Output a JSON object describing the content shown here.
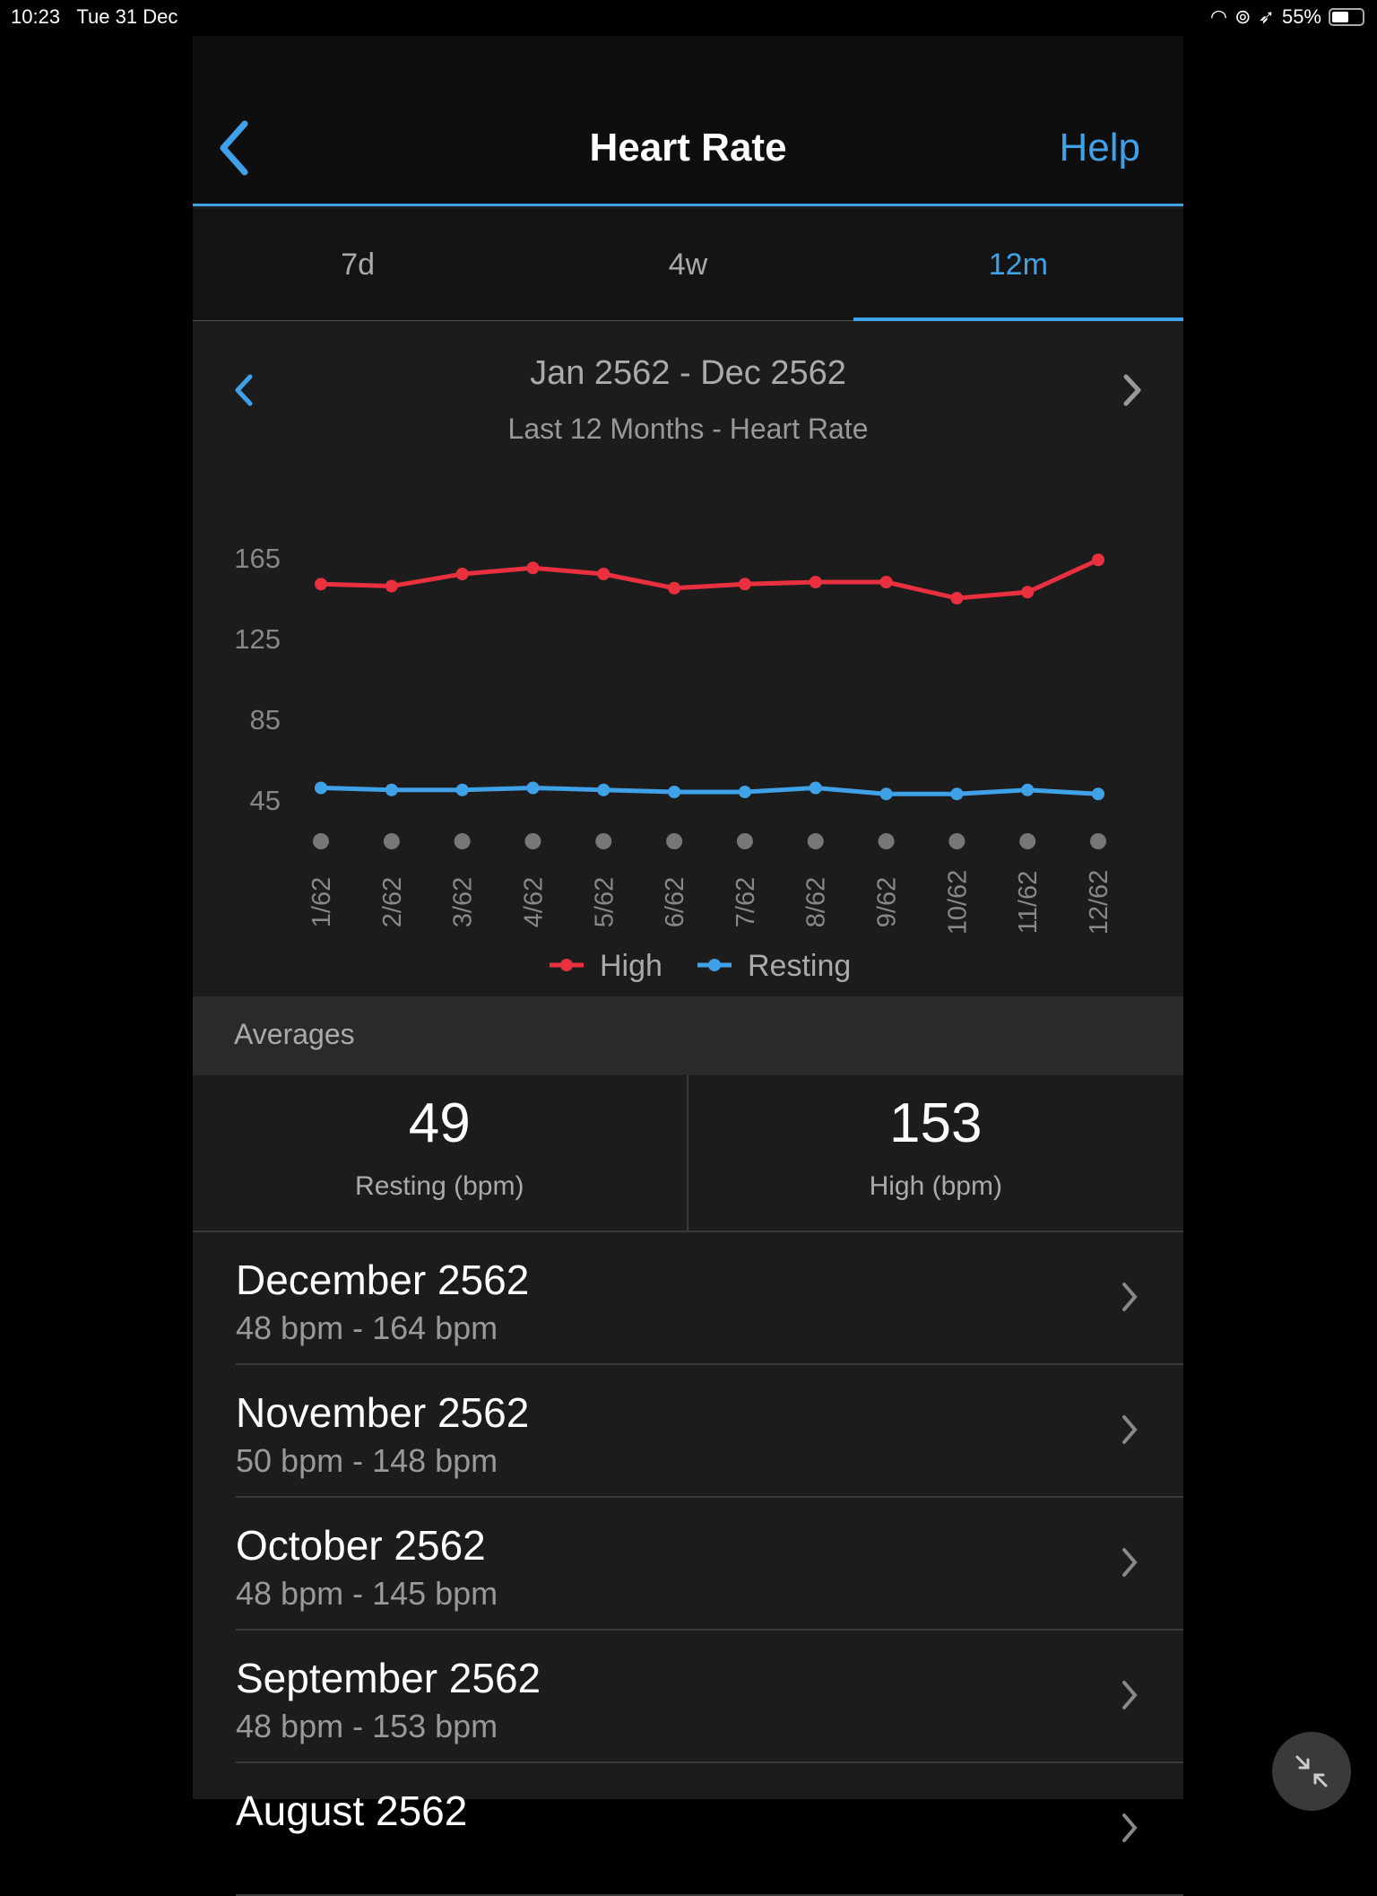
{
  "status": {
    "time": "10:23",
    "date": "Tue 31 Dec",
    "battery": "55%"
  },
  "header": {
    "title": "Heart Rate",
    "help": "Help"
  },
  "tabs": [
    {
      "label": "7d"
    },
    {
      "label": "4w"
    },
    {
      "label": "12m",
      "active": true
    }
  ],
  "range": {
    "date": "Jan 2562 - Dec 2562",
    "subtitle": "Last 12 Months - Heart Rate"
  },
  "chart_data": {
    "type": "line",
    "title": "Last 12 Months - Heart Rate",
    "categories": [
      "1/62",
      "2/62",
      "3/62",
      "4/62",
      "5/62",
      "6/62",
      "7/62",
      "8/62",
      "9/62",
      "10/62",
      "11/62",
      "12/62"
    ],
    "yticks": [
      "165",
      "125",
      "85",
      "45"
    ],
    "ylim": [
      45,
      165
    ],
    "series": [
      {
        "name": "High",
        "color": "#e8303f",
        "values": [
          152,
          151,
          157,
          160,
          157,
          150,
          152,
          153,
          153,
          145,
          148,
          164
        ]
      },
      {
        "name": "Resting",
        "color": "#3fa2e8",
        "values": [
          51,
          50,
          50,
          51,
          50,
          49,
          49,
          51,
          48,
          48,
          50,
          48
        ]
      }
    ],
    "legend": "bottom"
  },
  "averages": {
    "heading": "Averages",
    "resting": {
      "value": "49",
      "label": "Resting (bpm)"
    },
    "high": {
      "value": "153",
      "label": "High (bpm)"
    }
  },
  "months": [
    {
      "title": "December 2562",
      "range": "48 bpm - 164 bpm"
    },
    {
      "title": "November 2562",
      "range": "50 bpm - 148 bpm"
    },
    {
      "title": "October 2562",
      "range": "48 bpm - 145 bpm"
    },
    {
      "title": "September 2562",
      "range": "48 bpm - 153 bpm"
    },
    {
      "title": "August 2562",
      "range": ""
    }
  ]
}
